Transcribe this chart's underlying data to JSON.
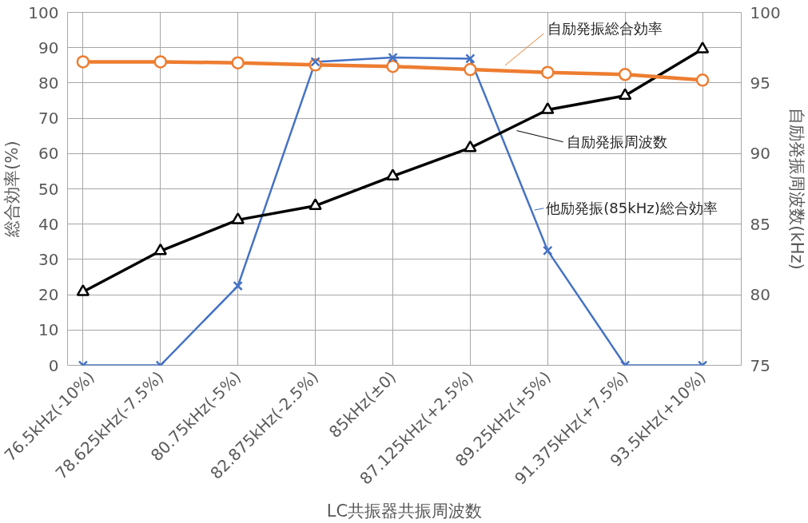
{
  "chart_data": {
    "type": "line",
    "xlabel": "LC共振器共振周波数",
    "ylabel": "総合効率(%)",
    "y2label": "自励発振周波数(kHz)",
    "categories": [
      "76.5kHz(-10%)",
      "78.625kHz(-7.5%)",
      "80.75kHz(-5%)",
      "82.875kHz(-2.5%)",
      "85kHz(±0)",
      "87.125kHz(+2.5%)",
      "89.25kHz(+5%)",
      "91.375kHz(+7.5%)",
      "93.5kHz(+10%)"
    ],
    "series": [
      {
        "name": "他励発振(85kHz)総合効率",
        "color": "#4472c4",
        "marker": "cross",
        "values": [
          0,
          0,
          22.5,
          86,
          87.2,
          86.9,
          32.5,
          0,
          0
        ]
      },
      {
        "name": "自励発振周波数",
        "color": "#000000",
        "marker": "triangle",
        "axis": "y2",
        "values": [
          80.2,
          83.1,
          85.3,
          86.3,
          88.4,
          90.4,
          93.1,
          94.1,
          97.4
        ]
      },
      {
        "name": "自励発振総合効率",
        "color": "#ed7d31",
        "marker": "circle",
        "values": [
          86.0,
          86.0,
          85.7,
          85.1,
          84.7,
          83.8,
          83.0,
          82.4,
          80.8
        ]
      }
    ],
    "ylim": [
      0,
      100
    ],
    "yticks": [
      0,
      10,
      20,
      30,
      40,
      50,
      60,
      70,
      80,
      90,
      100
    ],
    "y2lim": [
      75,
      100
    ],
    "y2ticks": [
      75,
      80,
      85,
      90,
      95,
      100
    ],
    "grid": true,
    "legend": "right"
  }
}
